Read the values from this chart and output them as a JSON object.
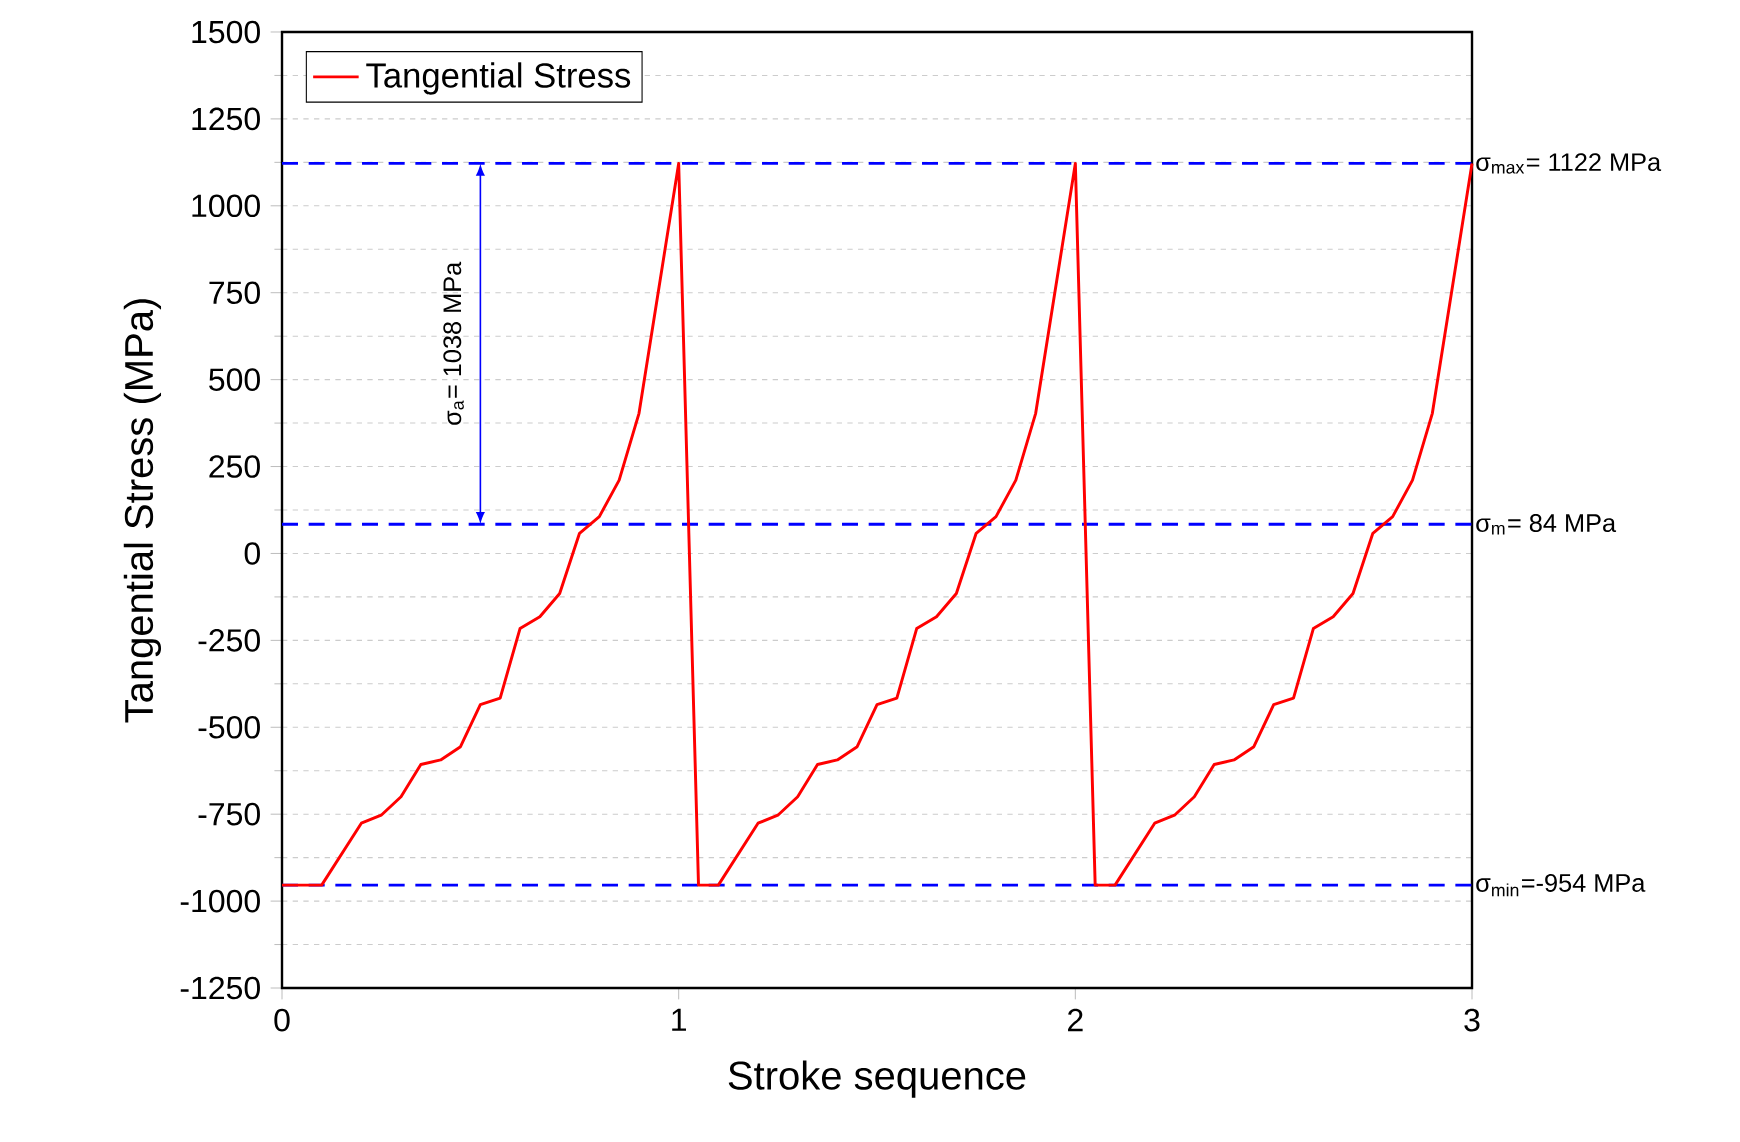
{
  "chart_data": {
    "type": "line",
    "xlabel": "Stroke sequence",
    "ylabel": "Tangential Stress (MPa)",
    "xlim": [
      0,
      3
    ],
    "xticks": [
      0,
      1,
      2,
      3
    ],
    "ylim": [
      -1250,
      1500
    ],
    "yticks": [
      -1250,
      -1000,
      -750,
      -500,
      -250,
      0,
      250,
      500,
      750,
      1000,
      1250,
      1500
    ],
    "series": [
      {
        "name": "Tangential Stress",
        "color": "#ff0000",
        "x": [
          0,
          0.1,
          0.2,
          0.25,
          0.3,
          0.35,
          0.4,
          0.45,
          0.5,
          0.55,
          0.6,
          0.65,
          0.7,
          0.75,
          0.8,
          0.85,
          0.9,
          1.0,
          1.05,
          1.1,
          1.2,
          1.25,
          1.3,
          1.35,
          1.4,
          1.45,
          1.5,
          1.55,
          1.6,
          1.65,
          1.7,
          1.75,
          1.8,
          1.85,
          1.9,
          2.0,
          2.05,
          2.1,
          2.2,
          2.25,
          2.3,
          2.35,
          2.4,
          2.45,
          2.5,
          2.55,
          2.6,
          2.65,
          2.7,
          2.75,
          2.8,
          2.85,
          2.9,
          3.0
        ],
        "values": [
          -954,
          -954,
          -776,
          -753,
          -700,
          -607,
          -594,
          -556,
          -435,
          -416,
          -216,
          -182,
          -115,
          58,
          106,
          211,
          403,
          1122,
          -954,
          -954,
          -776,
          -753,
          -700,
          -607,
          -594,
          -556,
          -435,
          -416,
          -216,
          -182,
          -115,
          58,
          106,
          211,
          403,
          1122,
          -954,
          -954,
          -776,
          -753,
          -700,
          -607,
          -594,
          -556,
          -435,
          -416,
          -216,
          -182,
          -115,
          58,
          106,
          211,
          403,
          1122
        ]
      }
    ],
    "ref_lines": [
      {
        "axis": "y",
        "value": 1122,
        "label": "σ$_{max}$= 1122 MPa",
        "color": "#0000ff",
        "line_style": "dashed"
      },
      {
        "axis": "y",
        "value": 84,
        "label": "σ$_{m}$= 84 MPa",
        "color": "#0000ff",
        "line_style": "dashed"
      },
      {
        "axis": "y",
        "value": -954,
        "label": "σ$_{min}$=-954 MPa",
        "color": "#0000ff",
        "line_style": "dashed"
      }
    ],
    "annotations": [
      "σ$_{a}$= 1038 MPa"
    ],
    "grid": "y",
    "legend": "top left",
    "marker": "none",
    "line_style": "solid"
  }
}
